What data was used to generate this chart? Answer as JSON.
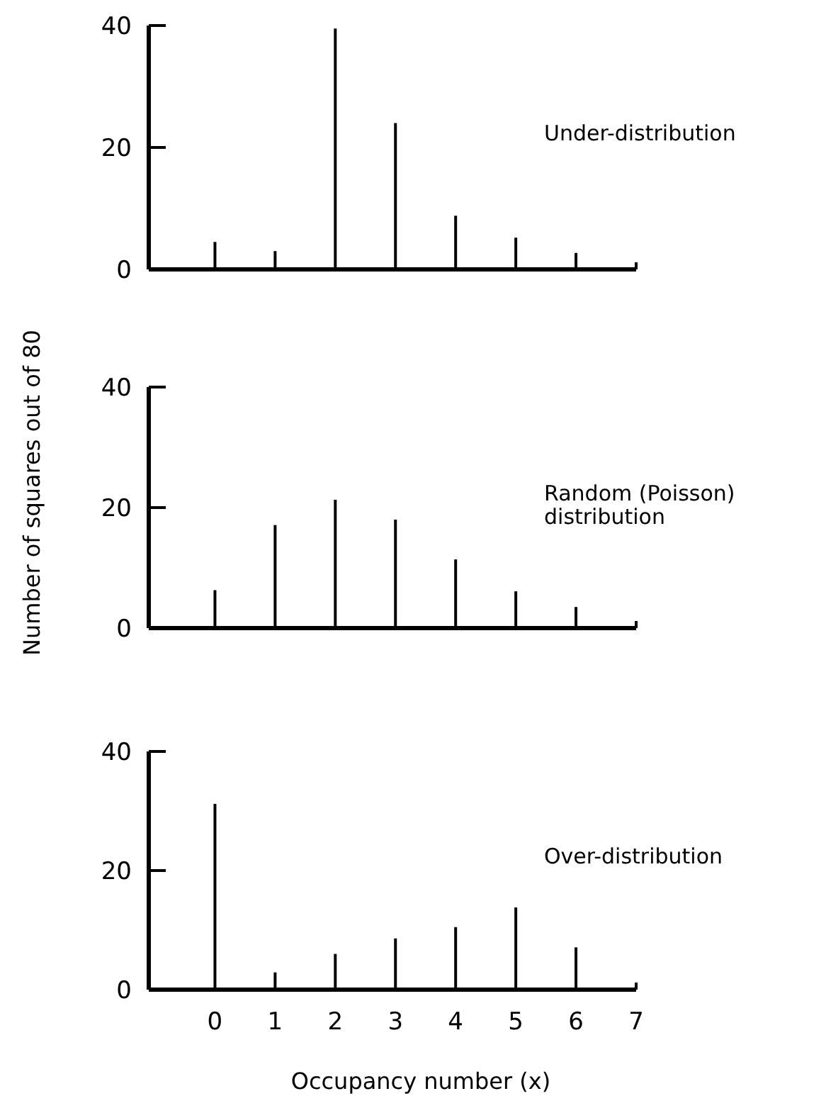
{
  "chart_data": [
    {
      "type": "bar",
      "x": [
        0,
        1,
        2,
        3,
        4,
        5,
        6
      ],
      "xlim": [
        -1.1,
        7
      ],
      "ylim": [
        0,
        40
      ],
      "yticks": [
        0,
        20,
        40
      ],
      "tick_labels": "y",
      "annotations": [
        "Under-distribution"
      ],
      "series": [
        {
          "color": "#000000",
          "values": [
            4.5,
            3,
            39.5,
            24,
            8.8,
            5.2,
            2.7
          ]
        }
      ]
    },
    {
      "type": "bar",
      "x": [
        0,
        1,
        2,
        3,
        4,
        5,
        6
      ],
      "xlim": [
        -1.1,
        7
      ],
      "ylim": [
        0,
        40
      ],
      "yticks": [
        0,
        20,
        40
      ],
      "tick_labels": "y",
      "ylabel": "Number of squares out of 80",
      "annotations": [
        "Random (Poisson)\ndistribution"
      ],
      "series": [
        {
          "color": "#000000",
          "values": [
            6.3,
            17.1,
            21.3,
            18,
            11.4,
            6.1,
            3.5
          ]
        }
      ]
    },
    {
      "type": "bar",
      "x": [
        0,
        1,
        2,
        3,
        4,
        5,
        6
      ],
      "xlim": [
        -1.1,
        7
      ],
      "xticks": [
        0,
        1,
        2,
        3,
        4,
        5,
        6,
        7
      ],
      "ylim": [
        0,
        40
      ],
      "yticks": [
        0,
        20,
        40
      ],
      "xlabel": "Occupancy number (x)",
      "annotations": [
        "Over-distribution"
      ],
      "series": [
        {
          "color": "#000000",
          "values": [
            31.2,
            2.9,
            6,
            8.6,
            10.5,
            13.8,
            7.1
          ]
        }
      ]
    }
  ]
}
